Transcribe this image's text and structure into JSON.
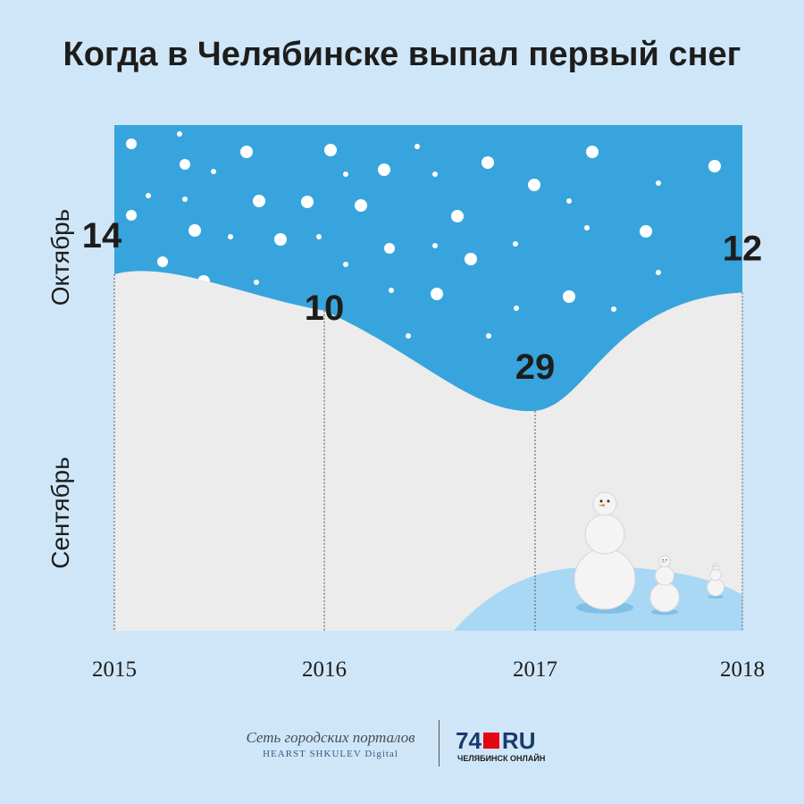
{
  "chart_data": {
    "type": "area",
    "title": "Когда в Челябинске выпал первый снег",
    "y_labels": [
      "Октябрь",
      "Сентябрь"
    ],
    "x": [
      "2015",
      "2016",
      "2017",
      "2018"
    ],
    "points": [
      {
        "year": "2015",
        "date": "14 октября",
        "label": "14"
      },
      {
        "year": "2016",
        "date": "10 октября",
        "label": "10"
      },
      {
        "year": "2017",
        "date": "29 сентября",
        "label": "29"
      },
      {
        "year": "2018",
        "date": "12 октября",
        "label": "12"
      }
    ],
    "values_days_into_autumn": [
      44,
      40,
      29,
      42
    ],
    "grid": false
  },
  "colors": {
    "background": "#cfe6f8",
    "sky": "#38a4dd",
    "snow_ground": "#ececec",
    "hill": "#a9d8f5",
    "text": "#1d1d1b"
  },
  "footer": {
    "network_label": "Сеть городских порталов",
    "network_sub": "HEARST SHKULEV Digital",
    "site_num": "74",
    "site_ru": "RU",
    "site_sub": "ЧЕЛЯБИНСК ОНЛАЙН"
  }
}
